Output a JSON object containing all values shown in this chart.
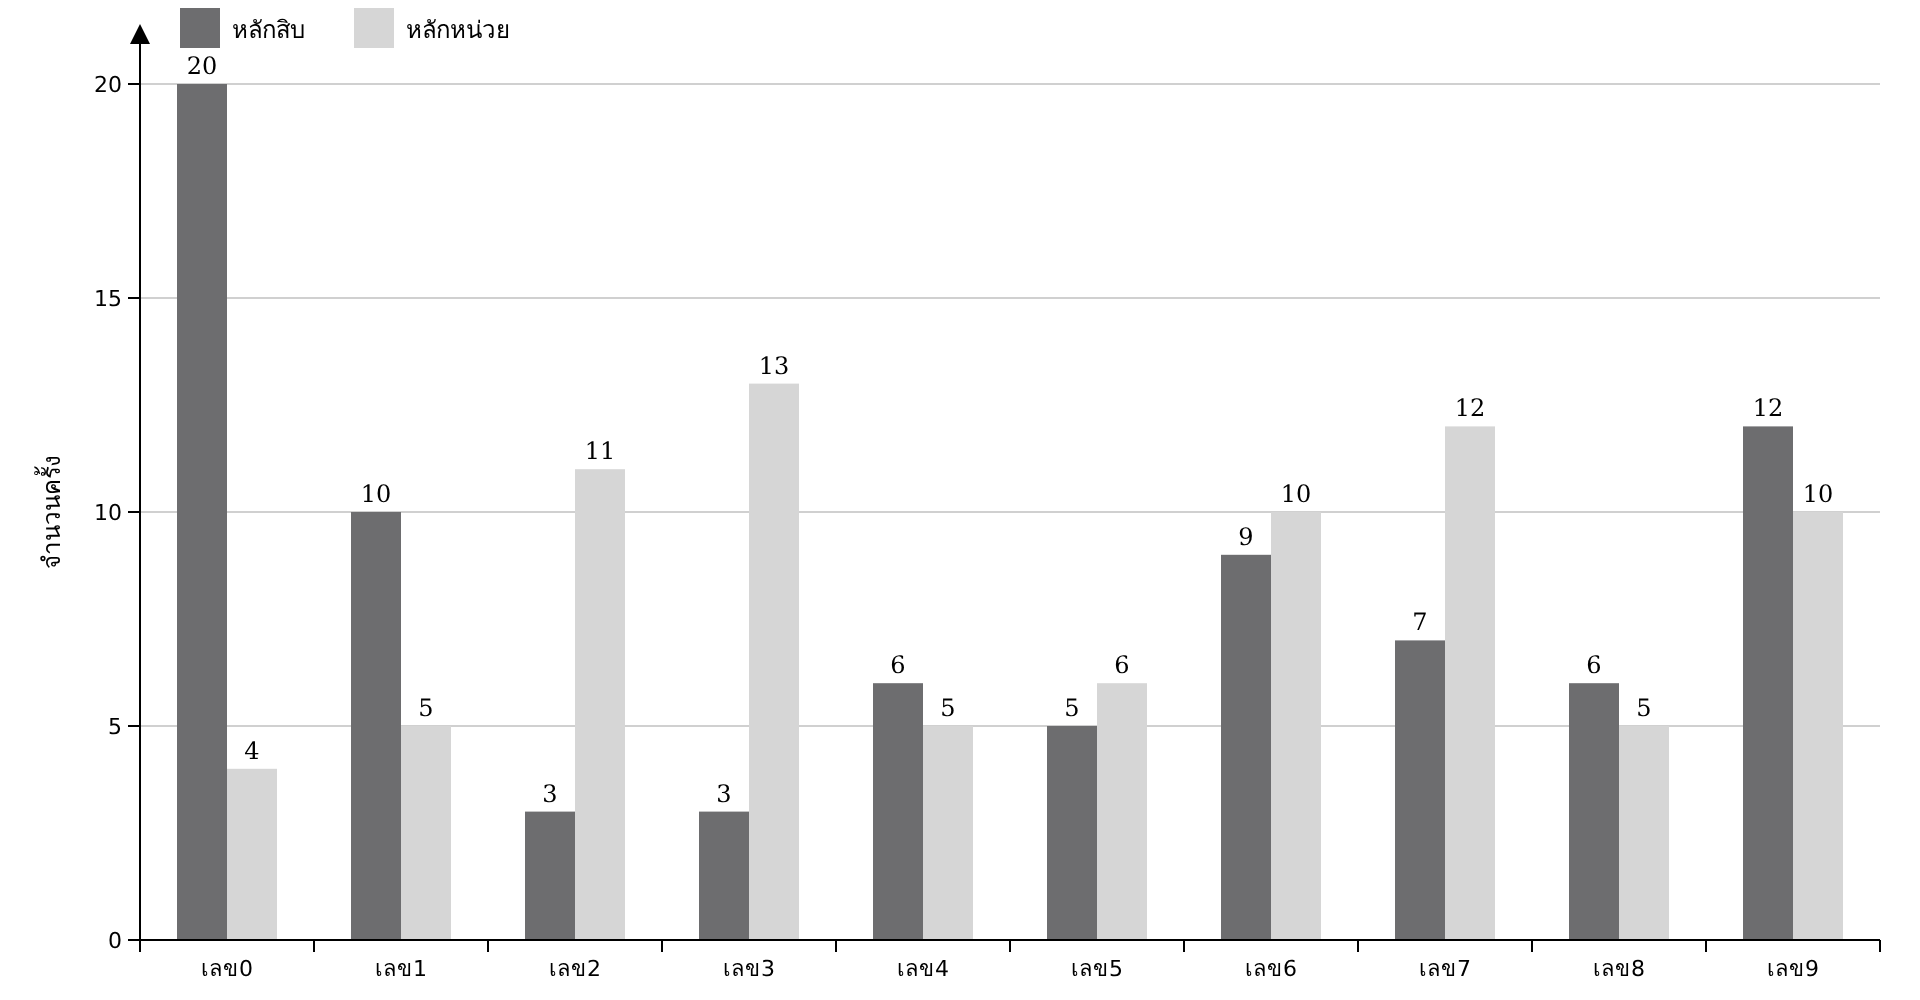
{
  "chart_data": {
    "type": "bar",
    "ylabel": "จำนวนครั้ง",
    "categories": [
      "เลข0",
      "เลข1",
      "เลข2",
      "เลข3",
      "เลข4",
      "เลข5",
      "เลข6",
      "เลข7",
      "เลข8",
      "เลข9"
    ],
    "series": [
      {
        "name": "หลักสิบ",
        "color": "#6d6d6f",
        "values": [
          20,
          10,
          3,
          3,
          6,
          5,
          9,
          7,
          6,
          12
        ]
      },
      {
        "name": "หลักหน่วย",
        "color": "#d6d6d6",
        "values": [
          4,
          5,
          11,
          13,
          5,
          6,
          10,
          12,
          5,
          10
        ]
      }
    ],
    "ylim": [
      0,
      20
    ],
    "yticks": [
      0,
      5,
      10,
      15,
      20
    ],
    "grid": "y",
    "legend": "top left",
    "data_labels": true
  }
}
